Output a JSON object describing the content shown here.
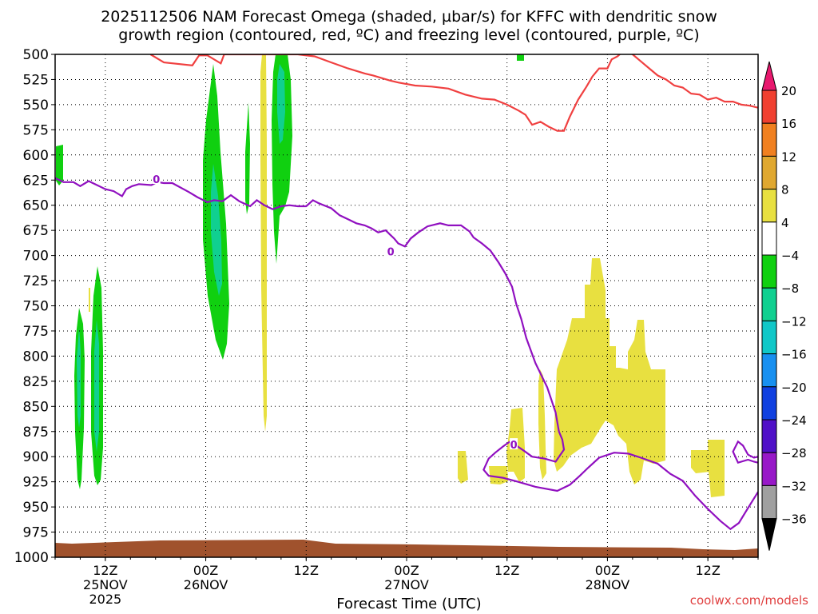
{
  "title_line1": "2025112506 NAM Forecast Omega (shaded, µbar/s) for KFFC with dendritic snow",
  "title_line2": "growth region (contoured, red, ºC) and freezing level (contoured, purple, ºC)",
  "credit": "coolwx.com/models",
  "chart_data": {
    "type": "time-height",
    "xlabel": "Forecast Time (UTC)",
    "x_ticks": [
      {
        "hour": 6,
        "label": "12Z",
        "sub": [
          "25NOV",
          "2025"
        ]
      },
      {
        "hour": 18,
        "label": "00Z",
        "sub": [
          "26NOV"
        ]
      },
      {
        "hour": 30,
        "label": "12Z",
        "sub": []
      },
      {
        "hour": 42,
        "label": "00Z",
        "sub": [
          "27NOV"
        ]
      },
      {
        "hour": 54,
        "label": "12Z",
        "sub": []
      },
      {
        "hour": 66,
        "label": "00Z",
        "sub": [
          "28NOV"
        ]
      },
      {
        "hour": 78,
        "label": "12Z",
        "sub": []
      }
    ],
    "x_range_hours": [
      0,
      84
    ],
    "y_levels_hPa": [
      500,
      525,
      550,
      575,
      600,
      625,
      650,
      675,
      700,
      725,
      750,
      775,
      800,
      825,
      850,
      875,
      900,
      925,
      950,
      975,
      1000
    ],
    "y_range_hPa": [
      500,
      1000
    ],
    "grid": true,
    "colorbar": {
      "labels": [
        "20",
        "16",
        "12",
        "8",
        "4",
        "−4",
        "−8",
        "−12",
        "−16",
        "−20",
        "−24",
        "−28",
        "−32",
        "−36"
      ],
      "colors": [
        "#e8186e",
        "#f04030",
        "#f08020",
        "#e0a830",
        "#e8e040",
        "#ffffff",
        "#10d010",
        "#10d090",
        "#10c8c8",
        "#1890f0",
        "#1040e0",
        "#5010c8",
        "#9818c8",
        "#a0a0a0",
        "#000000"
      ]
    },
    "dendritic_contour": {
      "color": "#f04040",
      "points": [
        [
          11.4,
          500
        ],
        [
          13,
          508
        ],
        [
          16.4,
          511
        ],
        [
          17.2,
          501
        ],
        [
          18.2,
          501
        ],
        [
          19.8,
          509
        ],
        [
          20.2,
          500
        ],
        [
          23,
          500
        ],
        [
          26,
          500
        ],
        [
          29,
          500
        ],
        [
          31,
          502
        ],
        [
          33,
          508
        ],
        [
          35,
          514
        ],
        [
          37,
          519
        ],
        [
          38,
          521
        ],
        [
          40,
          526
        ],
        [
          41,
          528
        ],
        [
          43,
          531
        ],
        [
          45,
          532
        ],
        [
          47,
          534
        ],
        [
          49,
          540
        ],
        [
          51,
          544
        ],
        [
          52.5,
          545
        ],
        [
          54,
          550
        ],
        [
          55.4,
          556
        ],
        [
          56.2,
          560
        ],
        [
          57,
          570
        ],
        [
          58,
          567
        ],
        [
          59,
          572
        ],
        [
          60,
          576
        ],
        [
          60.8,
          576
        ],
        [
          61.5,
          562
        ],
        [
          62.5,
          545
        ],
        [
          63.5,
          532
        ],
        [
          64.2,
          522
        ],
        [
          65,
          514
        ],
        [
          66,
          514
        ],
        [
          66.5,
          505
        ],
        [
          67.2,
          502
        ],
        [
          68,
          496
        ],
        [
          69,
          500
        ],
        [
          70,
          507
        ],
        [
          71,
          514
        ],
        [
          72,
          521
        ],
        [
          73,
          525
        ],
        [
          74,
          531
        ],
        [
          75,
          533
        ],
        [
          76,
          539
        ],
        [
          77,
          540
        ],
        [
          78,
          545
        ],
        [
          79,
          543
        ],
        [
          80,
          547
        ],
        [
          81,
          547
        ],
        [
          82,
          550
        ],
        [
          83,
          551
        ],
        [
          84,
          553
        ]
      ]
    },
    "freezing_contour": {
      "color": "#9010c0",
      "upper": [
        [
          0,
          623
        ],
        [
          1,
          627
        ],
        [
          2.2,
          627
        ],
        [
          3,
          631
        ],
        [
          4,
          626
        ],
        [
          5,
          630
        ],
        [
          6,
          634
        ],
        [
          7,
          636
        ],
        [
          8,
          641
        ],
        [
          8.5,
          634
        ],
        [
          9.2,
          631
        ],
        [
          10,
          629
        ],
        [
          11.5,
          630
        ],
        [
          12.2,
          627
        ],
        [
          13,
          628
        ],
        [
          14,
          628
        ],
        [
          16,
          637
        ],
        [
          17,
          642
        ],
        [
          18.2,
          647
        ],
        [
          19,
          645
        ],
        [
          20,
          646
        ],
        [
          21,
          640
        ],
        [
          22,
          646
        ],
        [
          23.3,
          651
        ],
        [
          24.1,
          645
        ],
        [
          25,
          650
        ],
        [
          26,
          654
        ],
        [
          27,
          651
        ],
        [
          28,
          650
        ],
        [
          29,
          651
        ],
        [
          30,
          651
        ],
        [
          30.8,
          645
        ],
        [
          31.5,
          648
        ],
        [
          33,
          653
        ],
        [
          34,
          660
        ],
        [
          35,
          664
        ],
        [
          36,
          668
        ],
        [
          37,
          670
        ],
        [
          37.8,
          673
        ],
        [
          38.6,
          677
        ],
        [
          39.5,
          675
        ],
        [
          40,
          679
        ],
        [
          40.5,
          683
        ],
        [
          41,
          688
        ],
        [
          41.8,
          691
        ],
        [
          42.5,
          683
        ],
        [
          43.4,
          677
        ],
        [
          44.5,
          671
        ],
        [
          46,
          668
        ],
        [
          47,
          670
        ],
        [
          48.5,
          670
        ],
        [
          49.5,
          676
        ],
        [
          50,
          682
        ],
        [
          51,
          688
        ],
        [
          52,
          695
        ],
        [
          53,
          707
        ],
        [
          53.8,
          718
        ],
        [
          54.6,
          731
        ],
        [
          55.1,
          748
        ],
        [
          55.7,
          763
        ],
        [
          56.3,
          782
        ],
        [
          57.4,
          807
        ],
        [
          58.8,
          831
        ],
        [
          59.8,
          856
        ],
        [
          60.2,
          875
        ],
        [
          60.6,
          883
        ],
        [
          60.8,
          893
        ],
        [
          59.8,
          905
        ],
        [
          58.5,
          902
        ],
        [
          57,
          900
        ],
        [
          56,
          894
        ],
        [
          55.3,
          890
        ],
        [
          54.5,
          884
        ],
        [
          53.5,
          890
        ],
        [
          52.6,
          896
        ],
        [
          51.8,
          902
        ],
        [
          51.2,
          913
        ],
        [
          51.8,
          919
        ],
        [
          53.5,
          921
        ],
        [
          55.3,
          925
        ],
        [
          57.4,
          930
        ],
        [
          60,
          934
        ],
        [
          61.5,
          928
        ],
        [
          62.7,
          919
        ],
        [
          63.7,
          911
        ],
        [
          65,
          901
        ],
        [
          66.8,
          896
        ],
        [
          68.5,
          897
        ],
        [
          70,
          901
        ],
        [
          72,
          907
        ],
        [
          73.5,
          917
        ],
        [
          75,
          924
        ],
        [
          76.5,
          939
        ],
        [
          78,
          952
        ],
        [
          79.5,
          964
        ],
        [
          80.7,
          972
        ],
        [
          81.7,
          966
        ],
        [
          82.8,
          951
        ],
        [
          84,
          935
        ]
      ],
      "lower": [
        [
          84,
          900
        ],
        [
          83.5,
          901
        ],
        [
          82.8,
          898
        ],
        [
          82.2,
          889
        ],
        [
          81.6,
          885
        ],
        [
          81,
          895
        ],
        [
          81.6,
          906
        ],
        [
          82.8,
          903
        ],
        [
          83.5,
          905
        ],
        [
          84,
          906
        ]
      ]
    },
    "freezing_labels": [
      [
        12.1,
        624
      ],
      [
        40.1,
        696
      ],
      [
        54.8,
        888
      ]
    ]
  }
}
